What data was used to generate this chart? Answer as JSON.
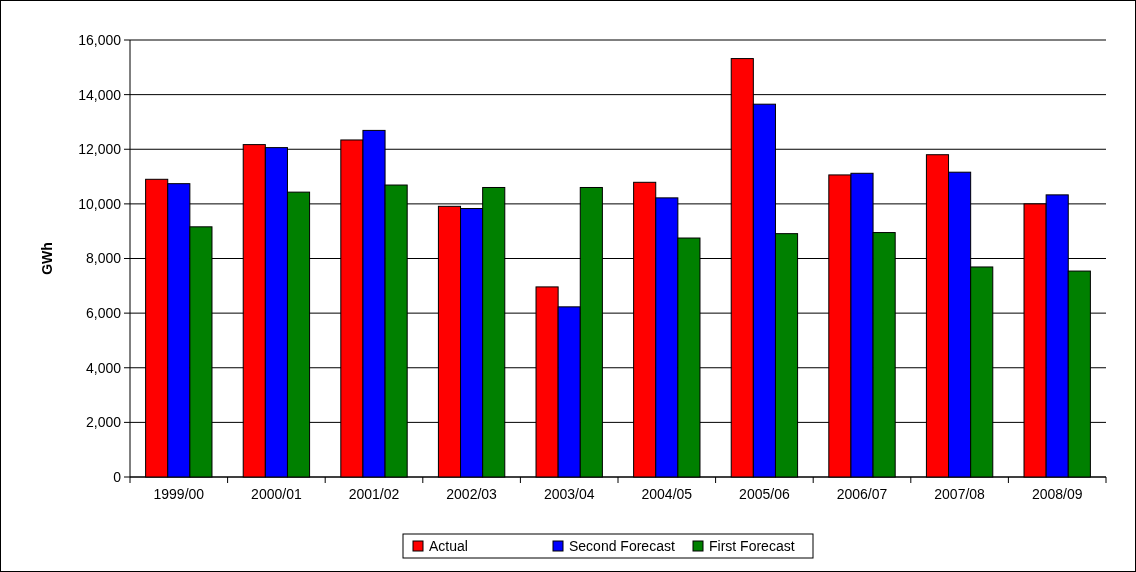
{
  "chart_data": {
    "type": "bar",
    "ylabel": "GWh",
    "categories": [
      "1999/00",
      "2000/01",
      "2001/02",
      "2002/03",
      "2003/04",
      "2004/05",
      "2005/06",
      "2006/07",
      "2007/08",
      "2008/09"
    ],
    "series": [
      {
        "name": "Actual",
        "color": "#ff0000",
        "values": [
          10900,
          12170,
          12340,
          9910,
          6960,
          10790,
          15320,
          11060,
          11800,
          10000
        ]
      },
      {
        "name": "Second Forecast",
        "color": "#0000ff",
        "values": [
          10740,
          12060,
          12690,
          9830,
          6230,
          10220,
          13650,
          11120,
          11160,
          10330
        ]
      },
      {
        "name": "First Forecast",
        "color": "#008000",
        "values": [
          9160,
          10430,
          10690,
          10600,
          10600,
          8750,
          8910,
          8950,
          7690,
          7540
        ]
      }
    ],
    "ylim": [
      0,
      16000
    ],
    "yticks": [
      {
        "value": 0,
        "label": "0"
      },
      {
        "value": 2000,
        "label": "2,000"
      },
      {
        "value": 4000,
        "label": "4,000"
      },
      {
        "value": 6000,
        "label": "6,000"
      },
      {
        "value": 8000,
        "label": "8,000"
      },
      {
        "value": 10000,
        "label": "10,000"
      },
      {
        "value": 12000,
        "label": "12,000"
      },
      {
        "value": 14000,
        "label": "14,000"
      },
      {
        "value": 16000,
        "label": "16,000"
      }
    ],
    "grid": "y",
    "legend": "bottom"
  }
}
